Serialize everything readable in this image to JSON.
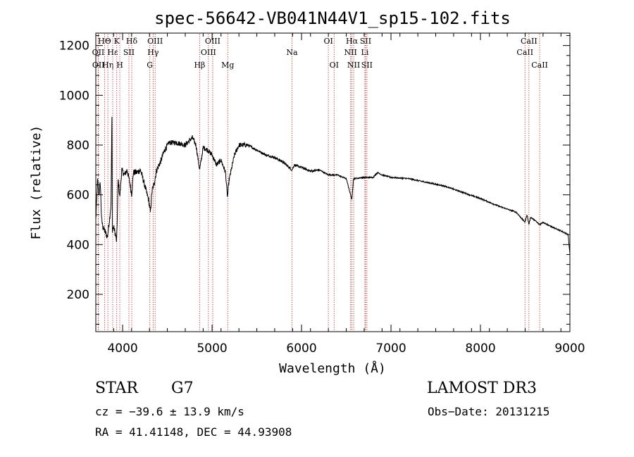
{
  "chart_data": {
    "type": "line",
    "title": "spec-56642-VB041N44V1_sp15-102.fits",
    "xlabel": "Wavelength (Å)",
    "ylabel": "Flux (relative)",
    "xlim": [
      3700,
      9000
    ],
    "ylim": [
      50,
      1250
    ],
    "xticks": [
      4000,
      5000,
      6000,
      7000,
      8000,
      9000
    ],
    "yticks": [
      200,
      400,
      600,
      800,
      1000,
      1200
    ],
    "x_minor_step": 200,
    "y_minor_step": 40,
    "spectrum_nodes": [
      [
        3700,
        500
      ],
      [
        3720,
        660
      ],
      [
        3735,
        600
      ],
      [
        3750,
        650
      ],
      [
        3765,
        500
      ],
      [
        3780,
        470
      ],
      [
        3800,
        455
      ],
      [
        3830,
        430
      ],
      [
        3850,
        490
      ],
      [
        3870,
        560
      ],
      [
        3880,
        910
      ],
      [
        3885,
        460
      ],
      [
        3900,
        470
      ],
      [
        3920,
        440
      ],
      [
        3933,
        410
      ],
      [
        3950,
        660
      ],
      [
        3968,
        590
      ],
      [
        3990,
        700
      ],
      [
        4020,
        680
      ],
      [
        4050,
        700
      ],
      [
        4080,
        650
      ],
      [
        4101,
        600
      ],
      [
        4120,
        690
      ],
      [
        4160,
        690
      ],
      [
        4200,
        700
      ],
      [
        4230,
        660
      ],
      [
        4260,
        620
      ],
      [
        4290,
        580
      ],
      [
        4310,
        530
      ],
      [
        4330,
        620
      ],
      [
        4350,
        640
      ],
      [
        4380,
        700
      ],
      [
        4420,
        730
      ],
      [
        4470,
        780
      ],
      [
        4520,
        810
      ],
      [
        4600,
        810
      ],
      [
        4700,
        800
      ],
      [
        4780,
        830
      ],
      [
        4820,
        800
      ],
      [
        4861,
        700
      ],
      [
        4900,
        790
      ],
      [
        4950,
        780
      ],
      [
        5000,
        760
      ],
      [
        5050,
        720
      ],
      [
        5100,
        740
      ],
      [
        5150,
        690
      ],
      [
        5172,
        590
      ],
      [
        5190,
        660
      ],
      [
        5250,
        760
      ],
      [
        5300,
        800
      ],
      [
        5400,
        800
      ],
      [
        5500,
        780
      ],
      [
        5600,
        760
      ],
      [
        5700,
        750
      ],
      [
        5800,
        730
      ],
      [
        5893,
        700
      ],
      [
        5920,
        720
      ],
      [
        6000,
        710
      ],
      [
        6100,
        695
      ],
      [
        6200,
        700
      ],
      [
        6300,
        680
      ],
      [
        6400,
        680
      ],
      [
        6500,
        665
      ],
      [
        6563,
        580
      ],
      [
        6580,
        665
      ],
      [
        6700,
        670
      ],
      [
        6800,
        670
      ],
      [
        6850,
        690
      ],
      [
        6900,
        680
      ],
      [
        7000,
        670
      ],
      [
        7200,
        665
      ],
      [
        7400,
        650
      ],
      [
        7600,
        635
      ],
      [
        7800,
        610
      ],
      [
        8000,
        585
      ],
      [
        8200,
        555
      ],
      [
        8400,
        530
      ],
      [
        8498,
        490
      ],
      [
        8520,
        520
      ],
      [
        8542,
        480
      ],
      [
        8560,
        510
      ],
      [
        8600,
        500
      ],
      [
        8662,
        480
      ],
      [
        8700,
        490
      ],
      [
        8800,
        470
      ],
      [
        8900,
        455
      ],
      [
        8980,
        440
      ],
      [
        9000,
        360
      ]
    ],
    "line_markers": [
      {
        "label": "HΘ",
        "wavelength": 3798,
        "row": 0
      },
      {
        "label": "OII",
        "wavelength": 3727,
        "row": 1
      },
      {
        "label": "OII",
        "wavelength": 3729,
        "row": 2
      },
      {
        "label": "Hη",
        "wavelength": 3835,
        "row": 2
      },
      {
        "label": "Hε",
        "wavelength": 3889,
        "row": 1
      },
      {
        "label": "K",
        "wavelength": 3934,
        "row": 0
      },
      {
        "label": "H",
        "wavelength": 3968,
        "row": 2
      },
      {
        "label": "SII",
        "wavelength": 4070,
        "row": 1
      },
      {
        "label": "Hδ",
        "wavelength": 4102,
        "row": 0
      },
      {
        "label": "OIII",
        "wavelength": 4363,
        "row": 0
      },
      {
        "label": "Hγ",
        "wavelength": 4341,
        "row": 1
      },
      {
        "label": "G",
        "wavelength": 4304,
        "row": 2
      },
      {
        "label": "Hβ",
        "wavelength": 4861,
        "row": 2
      },
      {
        "label": "OIII",
        "wavelength": 4959,
        "row": 1
      },
      {
        "label": "OIII",
        "wavelength": 5007,
        "row": 0
      },
      {
        "label": "Mg",
        "wavelength": 5175,
        "row": 2
      },
      {
        "label": "Na",
        "wavelength": 5893,
        "row": 1
      },
      {
        "label": "OI",
        "wavelength": 6300,
        "row": 0
      },
      {
        "label": "OI",
        "wavelength": 6364,
        "row": 2
      },
      {
        "label": "Hα",
        "wavelength": 6563,
        "row": 0
      },
      {
        "label": "NII",
        "wavelength": 6548,
        "row": 1
      },
      {
        "label": "NII",
        "wavelength": 6583,
        "row": 2
      },
      {
        "label": "SII",
        "wavelength": 6716,
        "row": 0
      },
      {
        "label": "Li",
        "wavelength": 6708,
        "row": 1
      },
      {
        "label": "SII",
        "wavelength": 6731,
        "row": 2
      },
      {
        "label": "CaII",
        "wavelength": 8498,
        "row": 1
      },
      {
        "label": "CaII",
        "wavelength": 8542,
        "row": 0
      },
      {
        "label": "CaII",
        "wavelength": 8662,
        "row": 2
      }
    ]
  },
  "info": {
    "class": "STAR",
    "subclass": "G7",
    "survey": "LAMOST DR3",
    "redshift": "cz = −39.6 ± 13.9 km/s",
    "obs_date": "Obs−Date: 20131215",
    "coords": "RA =  41.41148, DEC =  44.93908"
  },
  "colors": {
    "axis": "#000000",
    "spectrum": "#000000",
    "marker_line": "#b22222"
  }
}
